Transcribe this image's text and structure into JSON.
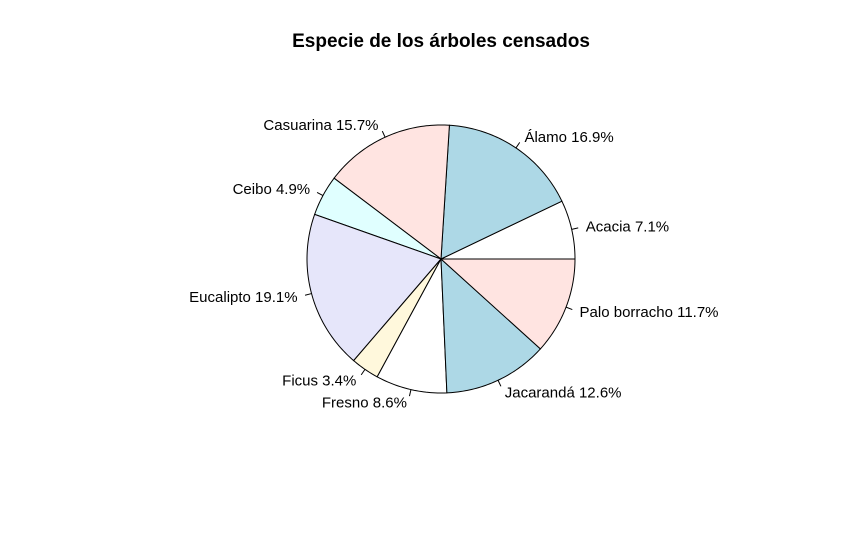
{
  "chart_data": {
    "type": "pie",
    "title": "Especie de los árboles censados",
    "start": "east",
    "direction": "counterclockwise",
    "slices": [
      {
        "category": "Acacia",
        "value": 7.1,
        "label": "Acacia 7.1%",
        "color": "#ffffff"
      },
      {
        "category": "Álamo",
        "value": 16.9,
        "label": "Álamo 16.9%",
        "color": "#add8e6"
      },
      {
        "category": "Casuarina",
        "value": 15.7,
        "label": "Casuarina 15.7%",
        "color": "#ffe4e1"
      },
      {
        "category": "Ceibo",
        "value": 4.9,
        "label": "Ceibo 4.9%",
        "color": "#e0ffff"
      },
      {
        "category": "Eucalipto",
        "value": 19.1,
        "label": "Eucalipto 19.1%",
        "color": "#e6e6fa"
      },
      {
        "category": "Ficus",
        "value": 3.4,
        "label": "Ficus 3.4%",
        "color": "#fff8dc"
      },
      {
        "category": "Fresno",
        "value": 8.6,
        "label": "Fresno 8.6%",
        "color": "#ffffff"
      },
      {
        "category": "Jacarandá",
        "value": 12.6,
        "label": "Jacarandá 12.6%",
        "color": "#add8e6"
      },
      {
        "category": "Palo borracho",
        "value": 11.7,
        "label": "Palo borracho 11.7%",
        "color": "#ffe4e1"
      }
    ]
  }
}
